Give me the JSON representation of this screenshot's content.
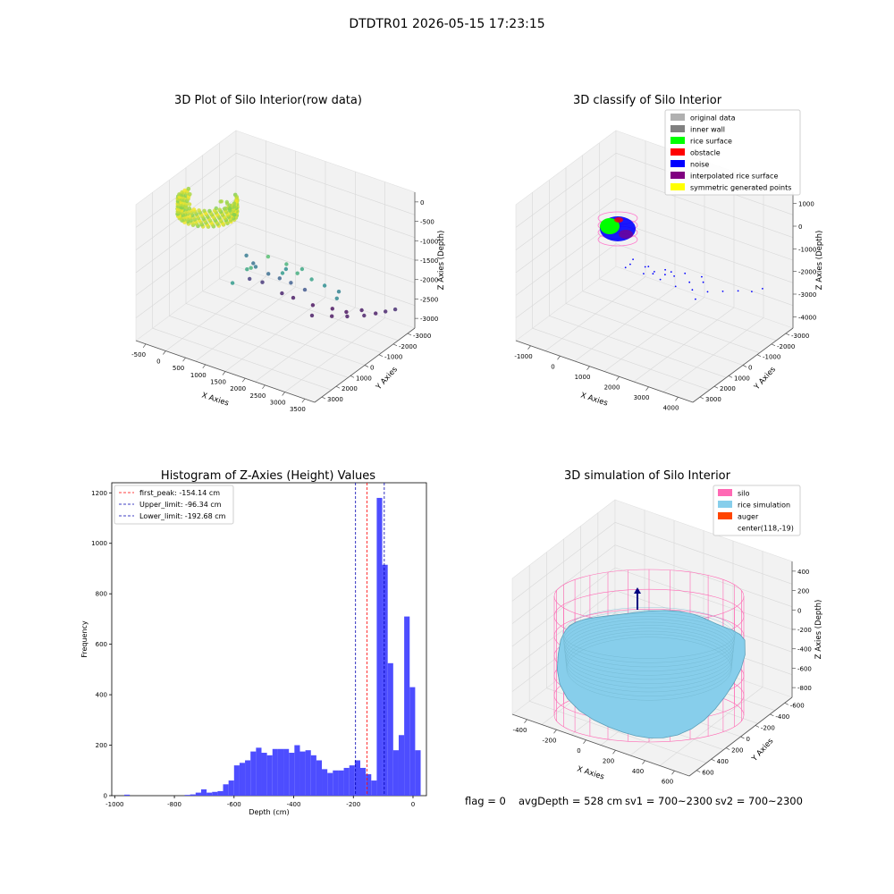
{
  "figure": {
    "suptitle": "DTDTR01 2026-05-15 17:23:15",
    "footer": {
      "flag": "flag = 0",
      "avg_depth": "avgDepth = 528 cm",
      "sv1": "sv1 = 700~2300",
      "sv2": "sv2 = 700~2300"
    }
  },
  "colors": {
    "original_data": "#b0b0b0",
    "inner_wall": "#808080",
    "rice_surface": "#00ff00",
    "obstacle": "#ff0000",
    "noise": "#0000ff",
    "interpolated_rice_surface": "#800080",
    "symmetric_generated_points": "#ffff00",
    "silo": "#ff69b4",
    "rice_simulation": "#87ceeb",
    "auger": "#ff4500",
    "histogram_bar": "#4d4dff",
    "first_peak_line": "#ff0000",
    "limit_line": "#0000b0"
  },
  "chart_data": [
    {
      "type": "scatter",
      "projection": "3d",
      "title": "3D Plot of Silo Interior(row data)",
      "xlabel": "X Axies",
      "ylabel": "Y Axies",
      "zlabel": "Z Axies (Depth)",
      "xticks": [
        "-500",
        "0",
        "500",
        "1000",
        "1500",
        "2000",
        "2500",
        "3000",
        "3500"
      ],
      "yticks": [
        "-3000",
        "-2000",
        "-1000",
        "0",
        "1000",
        "2000",
        "3000"
      ],
      "zticks": [
        "0",
        "-500",
        "-1000",
        "-1500",
        "-2000",
        "-2500",
        "-3000"
      ],
      "xlim": [
        -700,
        3600
      ],
      "ylim": [
        -3400,
        3400
      ],
      "zlim": [
        -3400,
        200
      ],
      "colormap": "viridis",
      "points": [
        [
          300,
          -400,
          -200
        ],
        [
          400,
          -300,
          -250
        ],
        [
          200,
          -200,
          -300
        ],
        [
          500,
          -100,
          -350
        ],
        [
          350,
          0,
          -400
        ],
        [
          250,
          100,
          -380
        ],
        [
          450,
          -500,
          -300
        ],
        [
          150,
          -350,
          -450
        ],
        [
          550,
          -250,
          -500
        ],
        [
          300,
          150,
          -550
        ],
        [
          1500,
          -1800,
          -1100
        ],
        [
          1700,
          -1200,
          -900
        ],
        [
          2000,
          -800,
          -1100
        ],
        [
          2300,
          -900,
          -1200
        ],
        [
          2500,
          -500,
          -1400
        ],
        [
          1300,
          -1500,
          -1300
        ],
        [
          1200,
          -2200,
          -1500
        ],
        [
          1800,
          -500,
          -1500
        ],
        [
          2600,
          100,
          -1700
        ],
        [
          2200,
          -300,
          -1300
        ],
        [
          3000,
          -200,
          -1800
        ],
        [
          2800,
          500,
          -1900
        ],
        [
          1600,
          300,
          -1700
        ],
        [
          400,
          1000,
          -2000
        ],
        [
          600,
          900,
          -2100
        ],
        [
          800,
          500,
          -2000
        ],
        [
          1000,
          800,
          -2200
        ],
        [
          1200,
          1000,
          -2300
        ],
        [
          1400,
          1200,
          -2400
        ],
        [
          1700,
          1300,
          -2500
        ],
        [
          300,
          1500,
          -2800
        ],
        [
          500,
          1800,
          -2900
        ],
        [
          900,
          2000,
          -3100
        ],
        [
          1100,
          2200,
          -3200
        ],
        [
          1500,
          2400,
          -3300
        ],
        [
          1900,
          2600,
          -3300
        ],
        [
          2200,
          2700,
          -3300
        ],
        [
          2500,
          2900,
          -3200
        ],
        [
          2800,
          3000,
          -3200
        ],
        [
          3000,
          3100,
          -3100
        ],
        [
          3200,
          3200,
          -3000
        ],
        [
          1800,
          1500,
          -3200
        ],
        [
          2100,
          2000,
          -3250
        ],
        [
          2400,
          2200,
          -3200
        ],
        [
          2700,
          2500,
          -3150
        ]
      ]
    },
    {
      "type": "scatter",
      "projection": "3d",
      "title": "3D classify of Silo Interior",
      "xlabel": "X Axies",
      "ylabel": "Y Axies",
      "zlabel": "Z Axies (Depth)",
      "xticks": [
        "-1000",
        "0",
        "1000",
        "2000",
        "3000",
        "4000"
      ],
      "yticks": [
        "-3000",
        "-2000",
        "-1000",
        "0",
        "1000",
        "2000",
        "3000"
      ],
      "zticks": [
        "1000",
        "0",
        "-1000",
        "-2000",
        "-3000",
        "-4000"
      ],
      "xlim": [
        -1500,
        4300
      ],
      "ylim": [
        -3300,
        3300
      ],
      "zlim": [
        -4300,
        1200
      ],
      "legend": [
        {
          "label": "original data",
          "color_key": "original_data"
        },
        {
          "label": "inner wall",
          "color_key": "inner_wall"
        },
        {
          "label": "rice surface",
          "color_key": "rice_surface"
        },
        {
          "label": "obstacle",
          "color_key": "obstacle"
        },
        {
          "label": "noise",
          "color_key": "noise"
        },
        {
          "label": "interpolated rice surface",
          "color_key": "interpolated_rice_surface"
        },
        {
          "label": "symmetric generated points",
          "color_key": "symmetric_generated_points"
        }
      ],
      "noise_points": [
        [
          1500,
          -1800,
          -600
        ],
        [
          1900,
          -1400,
          -700
        ],
        [
          2300,
          -1100,
          -800
        ],
        [
          2700,
          -600,
          -1000
        ],
        [
          3100,
          -300,
          -1100
        ],
        [
          1200,
          -1500,
          -1000
        ],
        [
          1700,
          -700,
          -1400
        ],
        [
          2200,
          -500,
          -1200
        ],
        [
          3000,
          0,
          -1500
        ],
        [
          600,
          200,
          -1700
        ],
        [
          800,
          600,
          -2100
        ],
        [
          1000,
          800,
          -2300
        ],
        [
          1400,
          700,
          -2200
        ],
        [
          1800,
          500,
          -2000
        ],
        [
          2100,
          900,
          -2300
        ],
        [
          300,
          1500,
          -3000
        ],
        [
          700,
          1800,
          -3200
        ],
        [
          1100,
          2000,
          -3400
        ],
        [
          1500,
          2300,
          -3500
        ],
        [
          1900,
          2500,
          -3500
        ],
        [
          2300,
          2700,
          -3400
        ],
        [
          2700,
          2900,
          -3300
        ],
        [
          3100,
          3000,
          -3200
        ],
        [
          3400,
          3100,
          -3000
        ],
        [
          2000,
          1500,
          -3300
        ]
      ]
    },
    {
      "type": "bar",
      "title": "Histogram of Z-Axies (Height) Values",
      "xlabel": "Depth (cm)",
      "ylabel": "Frequency",
      "xlim": [
        -1010,
        45
      ],
      "ylim": [
        0,
        1240
      ],
      "xticks": [
        -1000,
        -800,
        -600,
        -400,
        -200,
        0
      ],
      "yticks": [
        0,
        200,
        400,
        600,
        800,
        1000,
        1200
      ],
      "bin_edges_start": -968,
      "bin_width": 18.4,
      "counts": [
        4,
        0,
        0,
        0,
        0,
        0,
        0,
        0,
        0,
        0,
        0,
        3,
        5,
        12,
        25,
        12,
        15,
        18,
        45,
        60,
        120,
        130,
        140,
        175,
        190,
        170,
        160,
        185,
        185,
        185,
        170,
        200,
        175,
        180,
        160,
        140,
        105,
        90,
        100,
        100,
        110,
        120,
        140,
        110,
        85,
        60,
        1180,
        915,
        525,
        180,
        240,
        710,
        430,
        180
      ],
      "vlines": [
        {
          "label": "first_peak: -154.14 cm",
          "x": -154.14,
          "color_key": "first_peak_line"
        },
        {
          "label": "Upper_limit: -96.34 cm",
          "x": -96.34,
          "color_key": "limit_line"
        },
        {
          "label": "Lower_limit: -192.68 cm",
          "x": -192.68,
          "color_key": "limit_line"
        }
      ]
    },
    {
      "type": "surface",
      "projection": "3d",
      "title": "3D simulation of Silo Interior",
      "xlabel": "X Axies",
      "ylabel": "Y Axies",
      "zlabel": "Z Axies (Depth)",
      "xticks": [
        "-400",
        "-200",
        "0",
        "200",
        "400",
        "600"
      ],
      "yticks": [
        "-600",
        "-400",
        "-200",
        "0",
        "200",
        "400",
        "600"
      ],
      "zticks": [
        "400",
        "200",
        "0",
        "-200",
        "-400",
        "-600",
        "-800"
      ],
      "xlim": [
        -560,
        760
      ],
      "ylim": [
        -700,
        700
      ],
      "zlim": [
        -950,
        500
      ],
      "legend": [
        {
          "label": "silo",
          "color_key": "silo"
        },
        {
          "label": "rice simulation",
          "color_key": "rice_simulation"
        },
        {
          "label": "auger",
          "color_key": "auger"
        },
        {
          "label": "center(118,-19)",
          "color_key": ""
        }
      ],
      "silo_center": [
        118,
        -19
      ],
      "silo_radius": 620,
      "silo_z_range": [
        -950,
        0
      ],
      "rice_surface_mean_depth": -528
    }
  ]
}
